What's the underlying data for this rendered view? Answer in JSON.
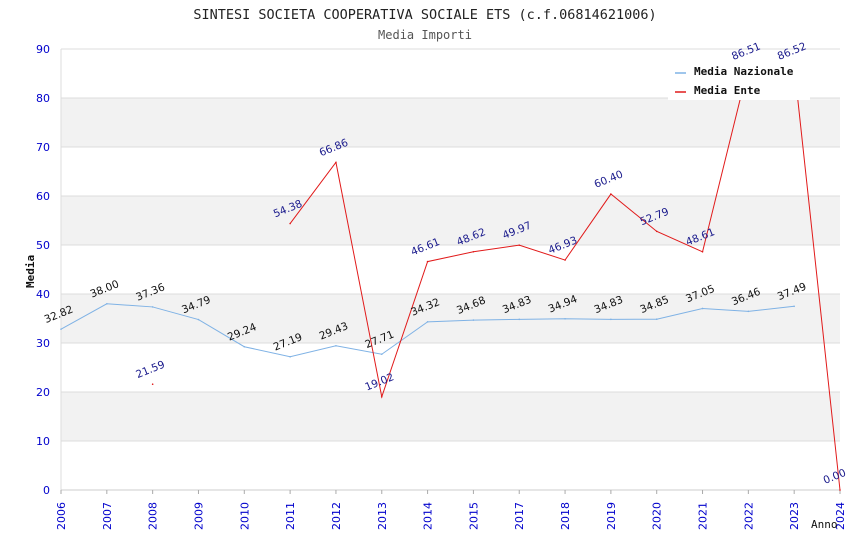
{
  "chart_data": {
    "type": "line",
    "title": "SINTESI SOCIETA COOPERATIVA SOCIALE ETS (c.f.06814621006)",
    "subtitle": "Media Importi",
    "xlabel": "Anno",
    "ylabel": "Media",
    "ylim": [
      0,
      90
    ],
    "yticks": [
      0,
      10,
      20,
      30,
      40,
      50,
      60,
      70,
      80,
      90
    ],
    "categories": [
      "2006",
      "2007",
      "2008",
      "2009",
      "2010",
      "2011",
      "2012",
      "2013",
      "2014",
      "2015",
      "2017",
      "2018",
      "2019",
      "2020",
      "2021",
      "2022",
      "2023",
      "2024"
    ],
    "legend_position": "top-right",
    "series": [
      {
        "name": "Media Nazionale",
        "color": "#7fb2e5",
        "label_color": "#111111",
        "values": [
          32.82,
          38.0,
          37.36,
          34.79,
          29.24,
          27.19,
          29.43,
          27.71,
          34.32,
          34.68,
          34.83,
          34.94,
          34.83,
          34.85,
          37.05,
          36.46,
          37.49,
          null
        ],
        "labels": [
          "32.82",
          "38.00",
          "37.36",
          "34.79",
          "29.24",
          "27.19",
          "29.43",
          "27.71",
          "34.32",
          "34.68",
          "34.83",
          "34.94",
          "34.83",
          "34.85",
          "37.05",
          "36.46",
          "37.49",
          null
        ]
      },
      {
        "name": "Media Ente",
        "color": "#e11a1a",
        "label_color": "#1a1a8c",
        "values": [
          null,
          null,
          21.59,
          null,
          null,
          54.38,
          66.86,
          19.02,
          46.61,
          48.62,
          49.97,
          46.93,
          60.4,
          52.79,
          48.61,
          86.51,
          86.52,
          0.0
        ],
        "labels": [
          null,
          null,
          "21.59",
          null,
          null,
          "54.38",
          "66.86",
          "19.02",
          "46.61",
          "48.62",
          "49.97",
          "46.93",
          "60.40",
          "52.79",
          "48.61",
          "86.51",
          "86.52",
          "0.00"
        ]
      }
    ],
    "grid": true
  },
  "colors": {
    "band_fill": "#f2f2f2",
    "grid_line": "#dcdcdc",
    "axis_text": "#0000cc",
    "title_text": "#222222"
  }
}
